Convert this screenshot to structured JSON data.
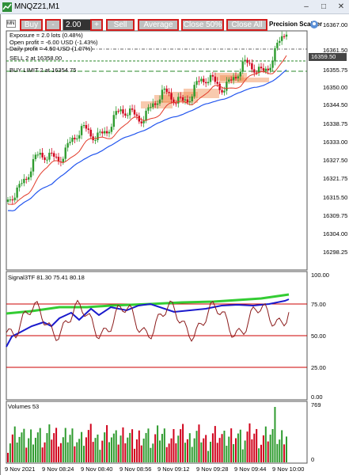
{
  "window": {
    "title": "MNQZ21,M1"
  },
  "toolbar": {
    "symbol_short": "MN",
    "buy_label": "Buy",
    "minus_label": "-",
    "lots_value": "2.00",
    "plus_label": "+",
    "sell_label": "Sell",
    "average_label": "Average",
    "close50_label": "Close 50%",
    "closeall_label": "Close All",
    "scalper_label": "Precision Scalper"
  },
  "info": {
    "exposure": "Exposure = 2.0 lots (0.48%)",
    "open_profit": "Open profit = -6.00 USD (-1.43%)",
    "daily_profit": "Daily profit = 4.50 USD (1.07%)",
    "sell_line": "SELL 2 at 16358.00",
    "buy_limit_line": "BUY LIMIT 2 at 16354.75"
  },
  "price_axis": {
    "labels": [
      "16367.00",
      "16361.50",
      "16355.75",
      "16350.00",
      "16344.50",
      "16338.75",
      "16333.00",
      "16327.50",
      "16321.75",
      "16315.50",
      "16309.75",
      "16304.00",
      "16298.25"
    ],
    "current_price": "16359.50"
  },
  "indicator": {
    "title": "Signal3TF 81.30 75.41 80.18",
    "levels": [
      "100.00",
      "75.00",
      "50.00",
      "25.00",
      "0.00"
    ]
  },
  "volumes": {
    "title": "Volumes 53",
    "max_label": "769",
    "min_label": "0"
  },
  "time_axis": {
    "labels": [
      "9 Nov 2021",
      "9 Nov 08:24",
      "9 Nov 08:40",
      "9 Nov 08:56",
      "9 Nov 09:12",
      "9 Nov 09:28",
      "9 Nov 09:44",
      "9 Nov 10:00"
    ]
  },
  "colors": {
    "toolbar_border": "#d21c1c",
    "candle_up": "#2e9b2e",
    "candle_down": "#d0021b",
    "ma_fast": "#e23b2a",
    "ma_slow": "#2255ee",
    "signal_green": "#33cc33",
    "signal_blue": "#1a1acc",
    "signal_dark": "#8b1a1a",
    "level_line": "#cc0000",
    "supply_zone": "#f08a4b"
  }
}
